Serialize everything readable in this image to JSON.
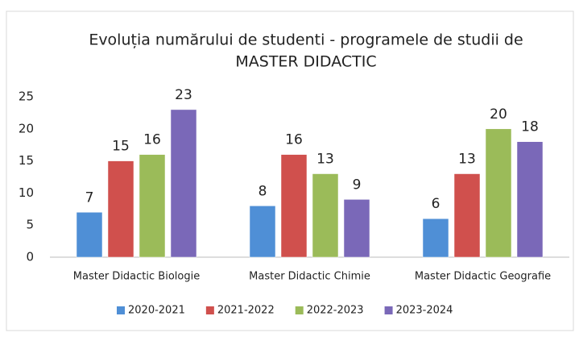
{
  "chart_data": {
    "type": "bar",
    "title": [
      "Evoluția numărului de studenti - programele de studii de",
      "MASTER DIDACTIC"
    ],
    "categories": [
      "Master Didactic Biologie",
      "Master Didactic Chimie",
      "Master Didactic  Geografie"
    ],
    "series": [
      {
        "name": "2020-2021",
        "color": "#4f8fd6",
        "values": [
          7,
          8,
          6
        ]
      },
      {
        "name": "2021-2022",
        "color": "#d0504d",
        "values": [
          15,
          16,
          13
        ]
      },
      {
        "name": "2022-2023",
        "color": "#9bbb59",
        "values": [
          16,
          13,
          20
        ]
      },
      {
        "name": "2023-2024",
        "color": "#7a68b8",
        "values": [
          23,
          9,
          18
        ]
      }
    ],
    "ylim": [
      0,
      25
    ],
    "yticks": [
      0,
      5,
      10,
      15,
      20,
      25
    ],
    "grid": false,
    "legend": "bottom"
  }
}
